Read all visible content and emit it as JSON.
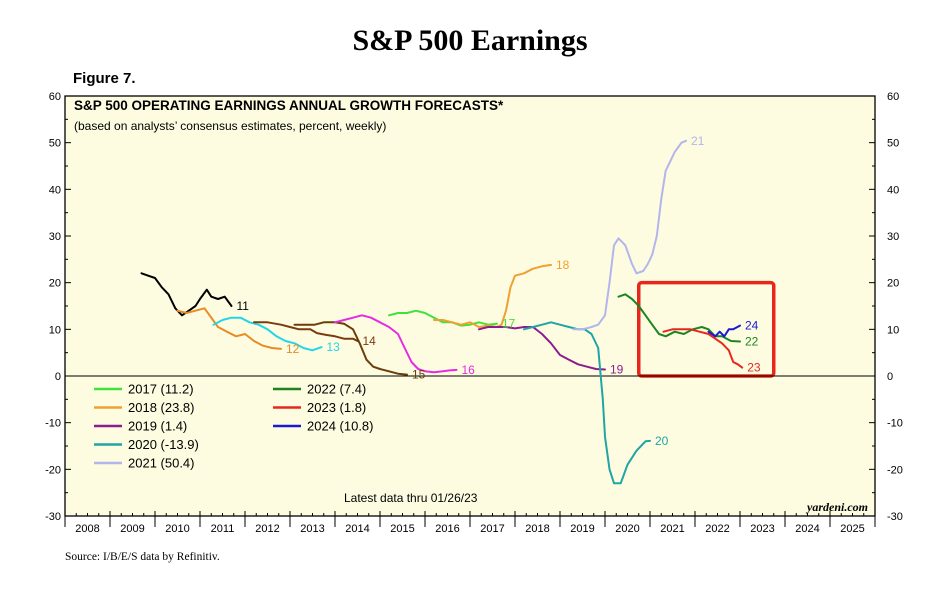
{
  "header": {
    "title": "S&P 500 Earnings",
    "figure_label": "Figure 7.",
    "source": "Source: I/B/E/S data by Refinitiv."
  },
  "chart_data": {
    "type": "line",
    "title": "S&P 500 OPERATING EARNINGS ANNUAL GROWTH FORECASTS*",
    "subtitle": "(based on analysts’ consensus estimates, percent, weekly)",
    "note": "Latest data thru 01/26/23",
    "watermark": "yardeni.com",
    "xlim": [
      2008,
      2026
    ],
    "ylim": [
      -30,
      60
    ],
    "y_ticks": [
      -30,
      -20,
      -10,
      0,
      10,
      20,
      30,
      40,
      50,
      60
    ],
    "y_tick_labels": [
      "-30",
      "-20",
      "-10",
      "0",
      "10",
      "20",
      "30",
      "40",
      "50",
      "60"
    ],
    "x_ticks": [
      "2008",
      "2009",
      "2010",
      "2011",
      "2012",
      "2013",
      "2014",
      "2015",
      "2016",
      "2017",
      "2018",
      "2019",
      "2020",
      "2021",
      "2022",
      "2023",
      "2024",
      "2025"
    ],
    "grid": false,
    "legend_position": "lower-left",
    "highlight_box": {
      "x": [
        2020.75,
        2023.75
      ],
      "y": [
        0,
        20
      ],
      "color": "#e8271c"
    },
    "legend": [
      {
        "label": "2017 (11.2)",
        "series": "17"
      },
      {
        "label": "2018 (23.8)",
        "series": "18"
      },
      {
        "label": "2019 (1.4)",
        "series": "19"
      },
      {
        "label": "2020 (-13.9)",
        "series": "20"
      },
      {
        "label": "2021 (50.4)",
        "series": "21"
      },
      {
        "label": "2022 (7.4)",
        "series": "22"
      },
      {
        "label": "2023 (1.8)",
        "series": "23"
      },
      {
        "label": "2024 (10.8)",
        "series": "24"
      }
    ],
    "series": [
      {
        "name": "11",
        "color": "#000000",
        "points": [
          [
            2009.7,
            22
          ],
          [
            2009.85,
            21.5
          ],
          [
            2010.0,
            21
          ],
          [
            2010.15,
            19
          ],
          [
            2010.3,
            17.5
          ],
          [
            2010.45,
            14.5
          ],
          [
            2010.6,
            13
          ],
          [
            2010.75,
            14
          ],
          [
            2010.9,
            15
          ],
          [
            2011.0,
            16.5
          ],
          [
            2011.15,
            18.5
          ],
          [
            2011.25,
            17
          ],
          [
            2011.4,
            16.5
          ],
          [
            2011.55,
            17
          ],
          [
            2011.7,
            15
          ]
        ]
      },
      {
        "name": "12",
        "color": "#e98b24",
        "points": [
          [
            2010.5,
            14
          ],
          [
            2010.7,
            13.5
          ],
          [
            2010.9,
            14
          ],
          [
            2011.1,
            14.5
          ],
          [
            2011.25,
            12.5
          ],
          [
            2011.4,
            10.5
          ],
          [
            2011.6,
            9.5
          ],
          [
            2011.8,
            8.5
          ],
          [
            2012.0,
            9
          ],
          [
            2012.2,
            7.5
          ],
          [
            2012.4,
            6.5
          ],
          [
            2012.6,
            6
          ],
          [
            2012.8,
            5.8
          ]
        ]
      },
      {
        "name": "13",
        "color": "#22d6e8",
        "points": [
          [
            2011.3,
            11
          ],
          [
            2011.5,
            12
          ],
          [
            2011.7,
            12.5
          ],
          [
            2011.9,
            12.5
          ],
          [
            2012.1,
            11.5
          ],
          [
            2012.3,
            11
          ],
          [
            2012.5,
            10
          ],
          [
            2012.7,
            8.5
          ],
          [
            2012.9,
            7.5
          ],
          [
            2013.1,
            7
          ],
          [
            2013.3,
            6
          ],
          [
            2013.5,
            5.5
          ],
          [
            2013.7,
            6.2
          ]
        ]
      },
      {
        "name": "14",
        "color": "#7b3b10",
        "points": [
          [
            2012.2,
            11.5
          ],
          [
            2012.5,
            11.5
          ],
          [
            2012.8,
            11
          ],
          [
            2013.0,
            10.5
          ],
          [
            2013.2,
            10
          ],
          [
            2013.45,
            10
          ],
          [
            2013.6,
            9.2
          ],
          [
            2013.8,
            8.8
          ],
          [
            2014.0,
            8.5
          ],
          [
            2014.2,
            8
          ],
          [
            2014.4,
            8
          ],
          [
            2014.5,
            7.5
          ]
        ]
      },
      {
        "name": "15",
        "color": "#6b3d0a",
        "points": [
          [
            2013.1,
            11
          ],
          [
            2013.3,
            11
          ],
          [
            2013.55,
            11
          ],
          [
            2013.75,
            11.5
          ],
          [
            2014.0,
            11.5
          ],
          [
            2014.2,
            11.2
          ],
          [
            2014.4,
            10
          ],
          [
            2014.55,
            7
          ],
          [
            2014.7,
            3.5
          ],
          [
            2014.85,
            2
          ],
          [
            2015.0,
            1.5
          ],
          [
            2015.2,
            1
          ],
          [
            2015.4,
            0.5
          ],
          [
            2015.6,
            0.3
          ]
        ]
      },
      {
        "name": "16",
        "color": "#e52de0",
        "points": [
          [
            2014.0,
            11.5
          ],
          [
            2014.2,
            12
          ],
          [
            2014.4,
            12.5
          ],
          [
            2014.6,
            13
          ],
          [
            2014.8,
            12.5
          ],
          [
            2015.0,
            11.5
          ],
          [
            2015.2,
            10.5
          ],
          [
            2015.4,
            9
          ],
          [
            2015.55,
            6
          ],
          [
            2015.7,
            3
          ],
          [
            2015.85,
            1.5
          ],
          [
            2016.0,
            1
          ],
          [
            2016.2,
            0.8
          ],
          [
            2016.4,
            1
          ],
          [
            2016.55,
            1.2
          ],
          [
            2016.7,
            1.3
          ]
        ]
      },
      {
        "name": "17",
        "color": "#3ee23a",
        "points": [
          [
            2015.2,
            13
          ],
          [
            2015.4,
            13.5
          ],
          [
            2015.6,
            13.5
          ],
          [
            2015.8,
            14
          ],
          [
            2016.0,
            13.5
          ],
          [
            2016.2,
            12.5
          ],
          [
            2016.4,
            11.5
          ],
          [
            2016.6,
            11.5
          ],
          [
            2016.8,
            10.8
          ],
          [
            2017.0,
            11
          ],
          [
            2017.2,
            11.5
          ],
          [
            2017.4,
            11
          ],
          [
            2017.6,
            11.2
          ]
        ]
      },
      {
        "name": "18",
        "color": "#f0a030",
        "points": [
          [
            2016.2,
            12
          ],
          [
            2016.4,
            12
          ],
          [
            2016.6,
            11.5
          ],
          [
            2016.8,
            11
          ],
          [
            2017.0,
            11.5
          ],
          [
            2017.2,
            10.5
          ],
          [
            2017.4,
            10.8
          ],
          [
            2017.6,
            10.5
          ],
          [
            2017.7,
            11
          ],
          [
            2017.8,
            14
          ],
          [
            2017.9,
            19
          ],
          [
            2018.0,
            21.5
          ],
          [
            2018.2,
            22
          ],
          [
            2018.4,
            23
          ],
          [
            2018.6,
            23.5
          ],
          [
            2018.8,
            23.8
          ]
        ]
      },
      {
        "name": "19",
        "color": "#8a1e8e",
        "points": [
          [
            2017.2,
            10
          ],
          [
            2017.4,
            10.5
          ],
          [
            2017.6,
            10.5
          ],
          [
            2017.8,
            10.5
          ],
          [
            2018.0,
            10.2
          ],
          [
            2018.2,
            10.5
          ],
          [
            2018.4,
            10.5
          ],
          [
            2018.6,
            9
          ],
          [
            2018.8,
            7
          ],
          [
            2019.0,
            4.5
          ],
          [
            2019.2,
            3.5
          ],
          [
            2019.4,
            2.5
          ],
          [
            2019.6,
            2
          ],
          [
            2019.8,
            1.5
          ],
          [
            2020.0,
            1.4
          ]
        ]
      },
      {
        "name": "20",
        "color": "#20a5a5",
        "points": [
          [
            2018.2,
            10
          ],
          [
            2018.4,
            10.5
          ],
          [
            2018.6,
            11
          ],
          [
            2018.8,
            11.5
          ],
          [
            2019.0,
            11
          ],
          [
            2019.2,
            10.5
          ],
          [
            2019.4,
            10
          ],
          [
            2019.55,
            10
          ],
          [
            2019.7,
            9
          ],
          [
            2019.85,
            6
          ],
          [
            2019.95,
            -5
          ],
          [
            2020.0,
            -13
          ],
          [
            2020.1,
            -20
          ],
          [
            2020.2,
            -23
          ],
          [
            2020.35,
            -23
          ],
          [
            2020.5,
            -19
          ],
          [
            2020.7,
            -16
          ],
          [
            2020.8,
            -15
          ],
          [
            2020.9,
            -14
          ],
          [
            2021.0,
            -13.9
          ]
        ]
      },
      {
        "name": "21",
        "color": "#b3b5ec",
        "points": [
          [
            2019.3,
            10
          ],
          [
            2019.5,
            10
          ],
          [
            2019.7,
            10.5
          ],
          [
            2019.85,
            11
          ],
          [
            2020.0,
            13
          ],
          [
            2020.1,
            20
          ],
          [
            2020.2,
            28
          ],
          [
            2020.3,
            29.5
          ],
          [
            2020.45,
            28
          ],
          [
            2020.6,
            24
          ],
          [
            2020.7,
            22
          ],
          [
            2020.85,
            22.5
          ],
          [
            2020.95,
            24
          ],
          [
            2021.05,
            26
          ],
          [
            2021.15,
            30
          ],
          [
            2021.25,
            38
          ],
          [
            2021.35,
            44
          ],
          [
            2021.45,
            46
          ],
          [
            2021.55,
            48
          ],
          [
            2021.7,
            50
          ],
          [
            2021.8,
            50.4
          ]
        ]
      },
      {
        "name": "22",
        "color": "#1c8520",
        "points": [
          [
            2020.3,
            17
          ],
          [
            2020.45,
            17.5
          ],
          [
            2020.6,
            16.5
          ],
          [
            2020.75,
            15
          ],
          [
            2020.9,
            13
          ],
          [
            2021.05,
            11
          ],
          [
            2021.2,
            9
          ],
          [
            2021.35,
            8.5
          ],
          [
            2021.55,
            9.5
          ],
          [
            2021.75,
            9
          ],
          [
            2021.95,
            10
          ],
          [
            2022.15,
            10.5
          ],
          [
            2022.3,
            10
          ],
          [
            2022.45,
            8.5
          ],
          [
            2022.6,
            8.5
          ],
          [
            2022.8,
            7.5
          ],
          [
            2023.0,
            7.4
          ]
        ]
      },
      {
        "name": "23",
        "color": "#e8271c",
        "points": [
          [
            2021.3,
            9.5
          ],
          [
            2021.5,
            10
          ],
          [
            2021.7,
            10
          ],
          [
            2021.9,
            10
          ],
          [
            2022.1,
            9.5
          ],
          [
            2022.3,
            9
          ],
          [
            2022.45,
            8
          ],
          [
            2022.6,
            7
          ],
          [
            2022.75,
            5.5
          ],
          [
            2022.85,
            3
          ],
          [
            2022.95,
            2.5
          ],
          [
            2023.05,
            1.8
          ]
        ]
      },
      {
        "name": "24",
        "color": "#1a1ad6",
        "points": [
          [
            2022.3,
            9.5
          ],
          [
            2022.45,
            8.5
          ],
          [
            2022.55,
            9.5
          ],
          [
            2022.65,
            8.5
          ],
          [
            2022.75,
            10
          ],
          [
            2022.85,
            10
          ],
          [
            2023.0,
            10.8
          ]
        ]
      }
    ]
  }
}
